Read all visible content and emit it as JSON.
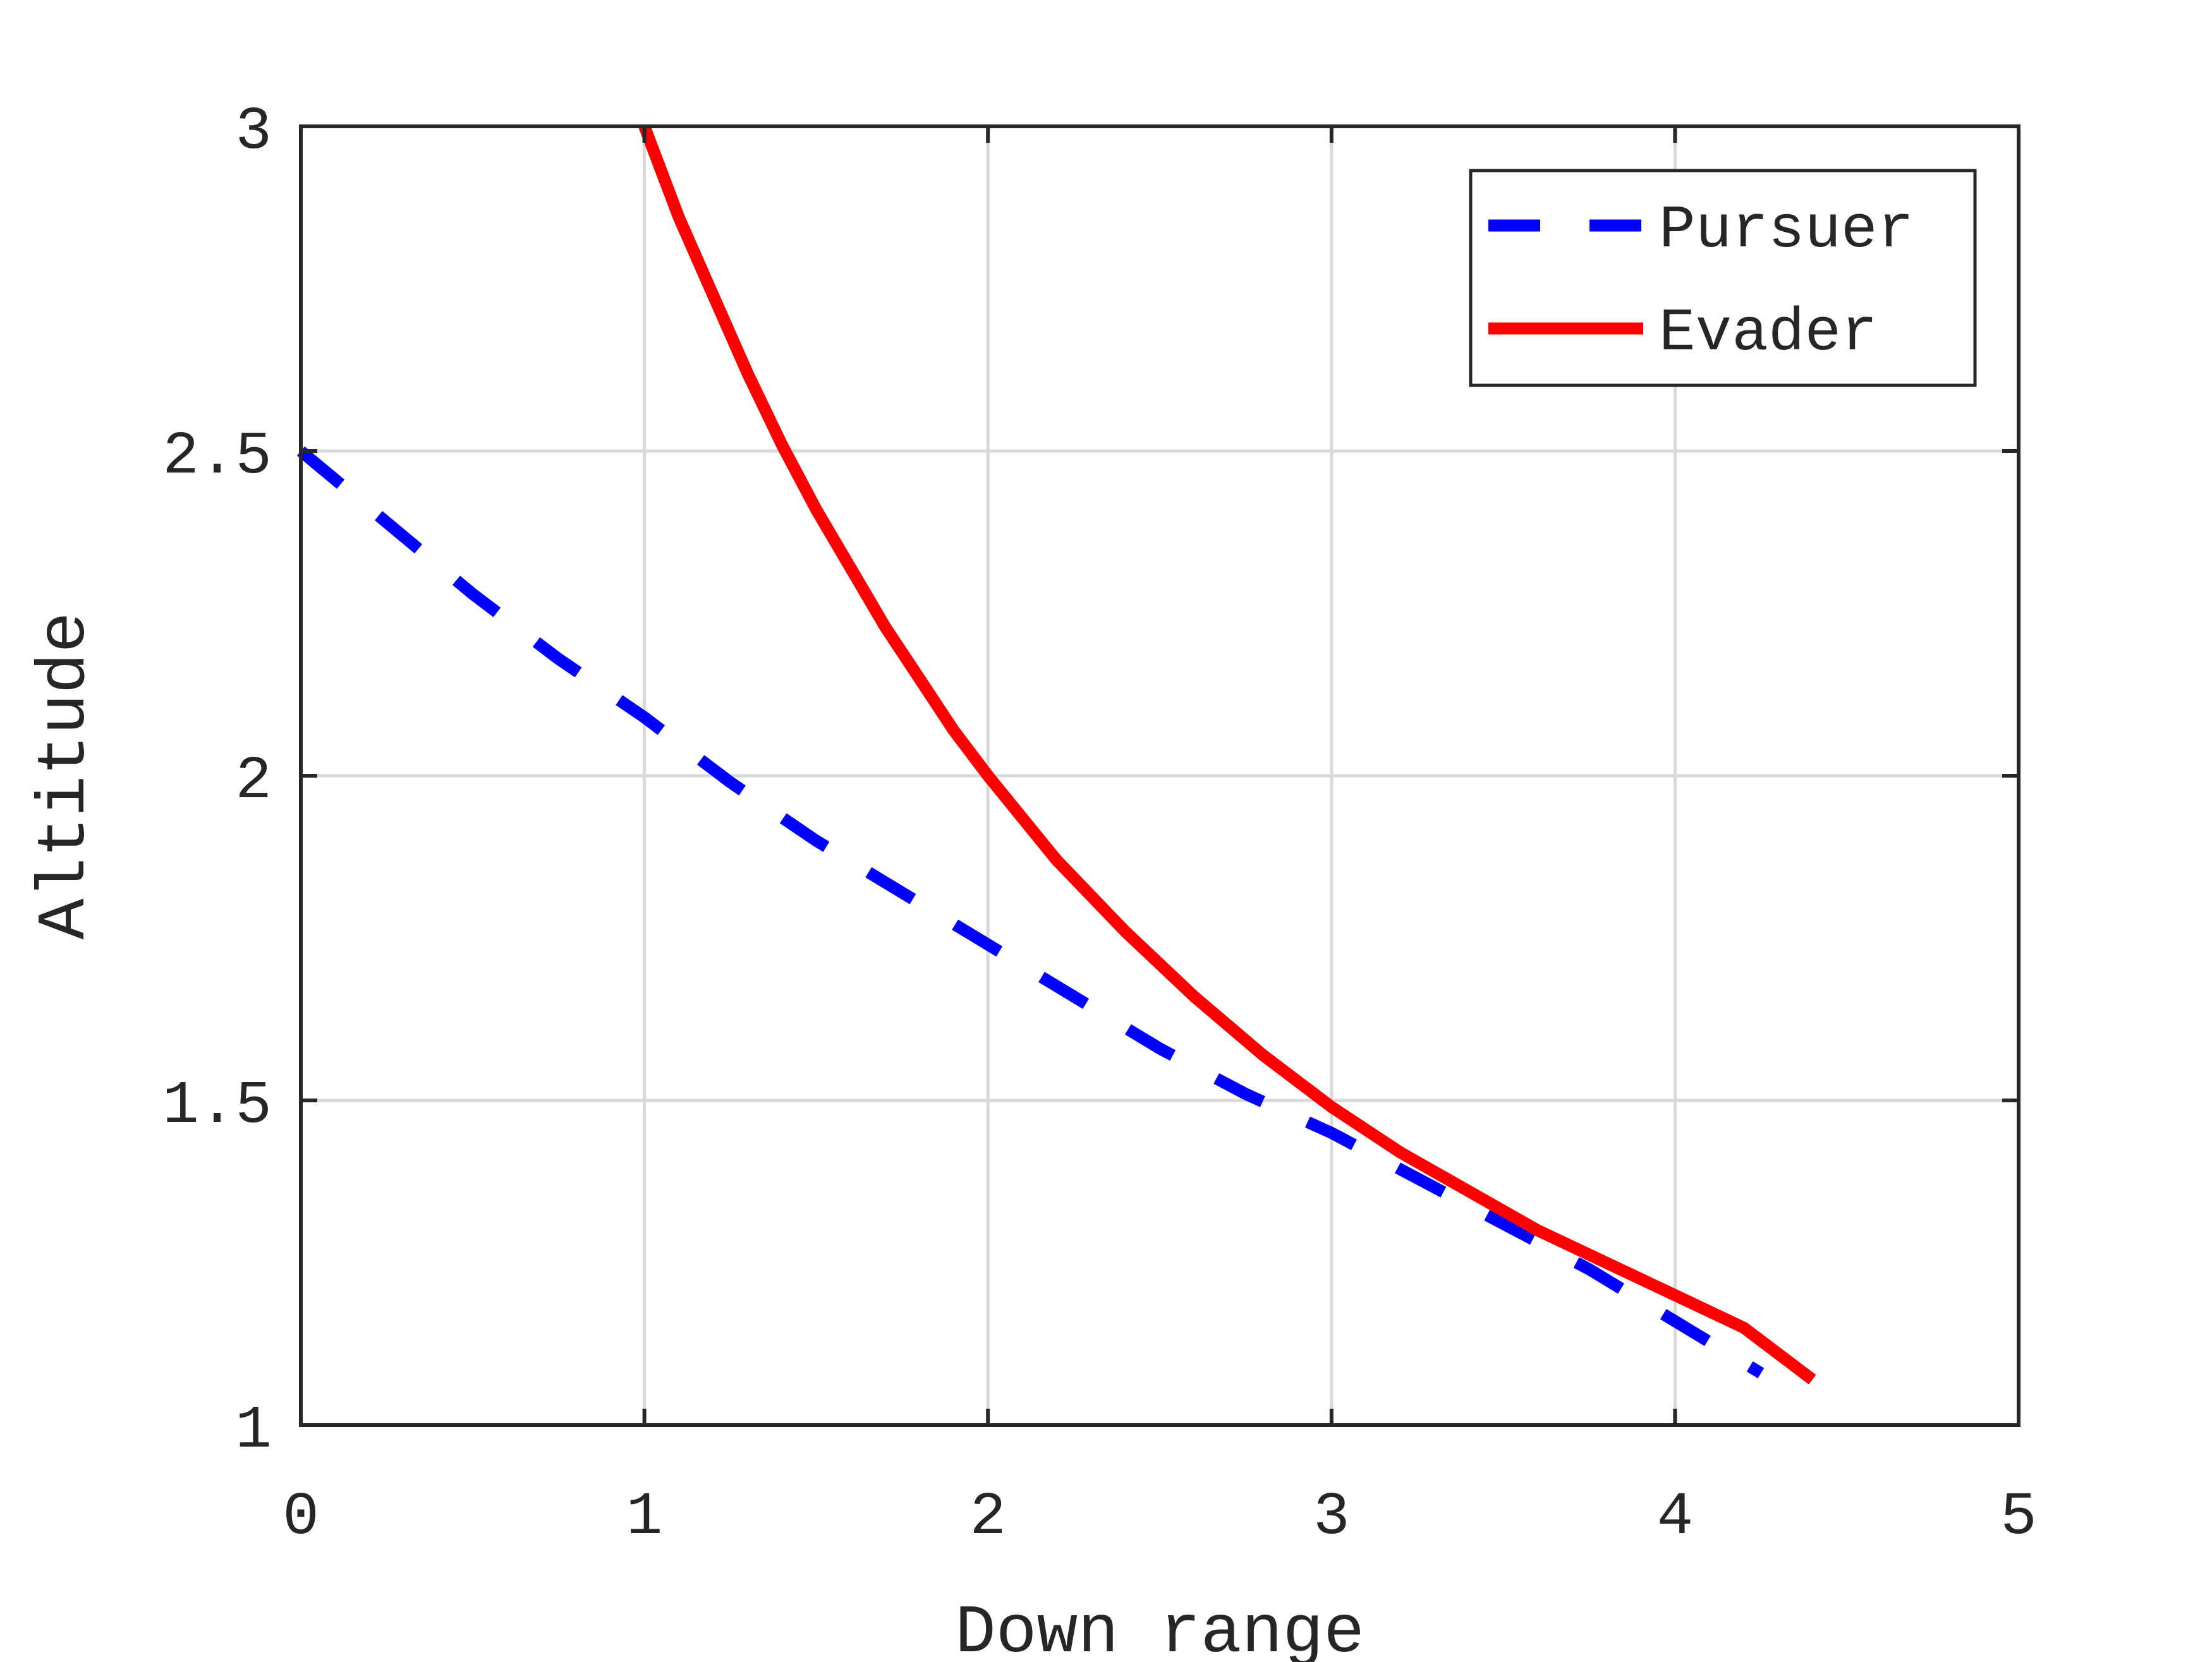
{
  "chart_data": {
    "type": "line",
    "title": "",
    "xlabel": "Down range",
    "ylabel": "Altitude",
    "xlim": [
      0,
      5
    ],
    "ylim": [
      1,
      3
    ],
    "xticks": [
      "0",
      "1",
      "2",
      "3",
      "4",
      "5"
    ],
    "yticks": [
      "1",
      "1.5",
      "2",
      "2.5",
      "3"
    ],
    "grid": true,
    "legend_position": "top-right",
    "series": [
      {
        "name": "Pursuer",
        "color": "#0000ff",
        "line_style": "dashed",
        "x": [
          0,
          0.25,
          0.5,
          0.75,
          1.0,
          1.25,
          1.5,
          1.75,
          2.0,
          2.25,
          2.5,
          2.75,
          3.0,
          3.25,
          3.5,
          3.75,
          4.0,
          4.25
        ],
        "y": [
          2.5,
          2.39,
          2.28,
          2.18,
          2.09,
          1.99,
          1.9,
          1.82,
          1.74,
          1.66,
          1.58,
          1.51,
          1.45,
          1.38,
          1.31,
          1.24,
          1.16,
          1.08
        ]
      },
      {
        "name": "Evader",
        "color": "#ff0000",
        "line_style": "solid",
        "x": [
          1.0,
          1.1,
          1.2,
          1.3,
          1.4,
          1.5,
          1.6,
          1.7,
          1.8,
          1.9,
          2.0,
          2.2,
          2.4,
          2.6,
          2.8,
          3.0,
          3.2,
          3.4,
          3.6,
          3.8,
          4.0,
          4.2,
          4.4
        ],
        "y": [
          3.0,
          2.86,
          2.74,
          2.62,
          2.51,
          2.41,
          2.32,
          2.23,
          2.15,
          2.07,
          2.0,
          1.87,
          1.76,
          1.66,
          1.57,
          1.49,
          1.42,
          1.36,
          1.3,
          1.25,
          1.2,
          1.15,
          1.07
        ]
      }
    ]
  }
}
